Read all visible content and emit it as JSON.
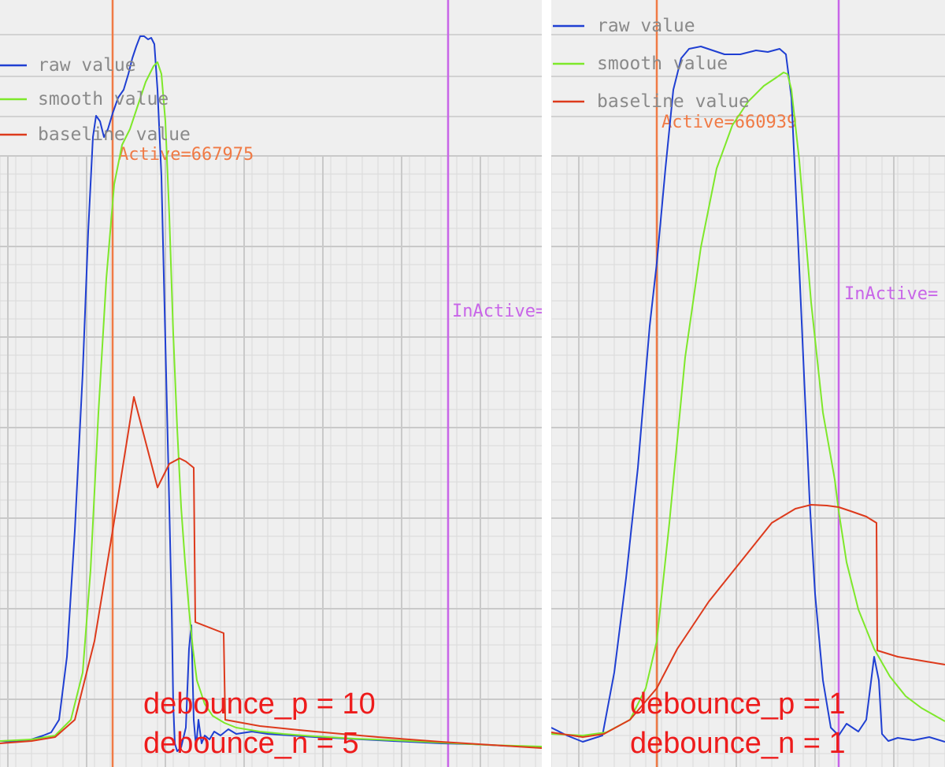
{
  "colors": {
    "raw": "#1f3fd2",
    "smooth": "#7ee82a",
    "baseline": "#dd3a1c",
    "active_marker": "#f07a45",
    "inactive_marker": "#c865e8",
    "annotation": "#ee1c1c",
    "grid": "#c9c9c9",
    "background": "#efefef"
  },
  "chart_data": [
    {
      "type": "line",
      "legend": [
        "raw value",
        "smooth value",
        "baseline value"
      ],
      "legend_position": "top-left",
      "grid": true,
      "xlim": [
        0,
        688
      ],
      "ylim": [
        0,
        974
      ],
      "markers": [
        {
          "id": "active",
          "label": "Active=667975",
          "x": 143
        },
        {
          "id": "inactive",
          "label": "InActive=",
          "x": 569
        }
      ],
      "annotations": [
        "debounce_p = 10",
        "debounce_n = 5"
      ],
      "series": [
        {
          "name": "raw value",
          "x": [
            0,
            20,
            40,
            55,
            65,
            75,
            85,
            95,
            105,
            112,
            118,
            122,
            127,
            132,
            137,
            143,
            150,
            157,
            163,
            168,
            173,
            178,
            183,
            188,
            192,
            196,
            200,
            205,
            210,
            215,
            218,
            220,
            222,
            225,
            230,
            236,
            240,
            243,
            246,
            249,
            252,
            256,
            260,
            266,
            272,
            280,
            290,
            300,
            320,
            340,
            370,
            400,
            440,
            480,
            520,
            560,
            600,
            640,
            688
          ],
          "y": [
            33,
            32,
            35,
            40,
            44,
            60,
            140,
            300,
            500,
            680,
            800,
            827,
            820,
            800,
            810,
            830,
            850,
            860,
            880,
            900,
            915,
            928,
            928,
            924,
            926,
            918,
            860,
            750,
            540,
            330,
            200,
            80,
            30,
            20,
            25,
            50,
            150,
            180,
            60,
            25,
            60,
            30,
            40,
            35,
            45,
            40,
            48,
            42,
            45,
            42,
            40,
            38,
            36,
            34,
            32,
            30,
            29,
            27,
            25
          ]
        },
        {
          "name": "smooth value",
          "x": [
            0,
            40,
            70,
            90,
            105,
            115,
            125,
            135,
            145,
            155,
            165,
            175,
            185,
            195,
            200,
            205,
            210,
            215,
            220,
            225,
            230,
            235,
            240,
            245,
            250,
            260,
            270,
            285,
            300,
            330,
            360,
            400,
            450,
            500,
            560,
            620,
            688
          ],
          "y": [
            33,
            35,
            40,
            60,
            120,
            250,
            450,
            620,
            740,
            790,
            810,
            840,
            870,
            890,
            895,
            880,
            820,
            700,
            550,
            430,
            330,
            260,
            200,
            150,
            110,
            80,
            65,
            56,
            50,
            45,
            42,
            39,
            36,
            34,
            31,
            28,
            26
          ]
        },
        {
          "name": "baseline value",
          "x": [
            0,
            40,
            70,
            95,
            120,
            143,
            170,
            200,
            215,
            228,
            236,
            246,
            248,
            284,
            286,
            330,
            400,
            480,
            560,
            640,
            688
          ],
          "y": [
            30,
            33,
            38,
            60,
            160,
            300,
            470,
            355,
            385,
            392,
            388,
            380,
            184,
            170,
            60,
            52,
            45,
            38,
            32,
            27,
            24
          ]
        }
      ]
    },
    {
      "type": "line",
      "legend": [
        "raw value",
        "smooth value",
        "baseline value"
      ],
      "legend_position": "top-left",
      "grid": true,
      "xlim": [
        0,
        500
      ],
      "ylim": [
        0,
        974
      ],
      "markers": [
        {
          "id": "active",
          "label": "Active=660939",
          "x": 134
        },
        {
          "id": "inactive",
          "label": "InActive=",
          "x": 365
        }
      ],
      "annotations": [
        "debounce_p = 1",
        "debounce_n = 1"
      ],
      "series": [
        {
          "name": "raw value",
          "x": [
            0,
            20,
            40,
            65,
            80,
            95,
            110,
            125,
            134,
            145,
            155,
            165,
            175,
            190,
            205,
            220,
            240,
            260,
            275,
            290,
            298,
            305,
            312,
            320,
            328,
            335,
            345,
            355,
            365,
            375,
            390,
            400,
            410,
            416,
            420,
            428,
            440,
            460,
            480,
            500
          ],
          "y": [
            50,
            40,
            32,
            40,
            120,
            240,
            380,
            560,
            640,
            760,
            860,
            900,
            912,
            915,
            910,
            905,
            905,
            910,
            908,
            912,
            905,
            850,
            700,
            520,
            340,
            220,
            110,
            50,
            40,
            55,
            45,
            60,
            140,
            110,
            42,
            33,
            37,
            34,
            38,
            32
          ]
        },
        {
          "name": "smooth value",
          "x": [
            0,
            40,
            70,
            100,
            120,
            134,
            150,
            170,
            190,
            210,
            230,
            250,
            270,
            285,
            295,
            300,
            305,
            315,
            330,
            345,
            360,
            365,
            375,
            390,
            410,
            430,
            450,
            470,
            500
          ],
          "y": [
            42,
            40,
            44,
            60,
            100,
            160,
            310,
            520,
            660,
            760,
            815,
            845,
            865,
            875,
            882,
            880,
            860,
            770,
            590,
            450,
            365,
            325,
            260,
            200,
            150,
            115,
            90,
            75,
            58
          ]
        },
        {
          "name": "baseline value",
          "x": [
            0,
            40,
            67,
            100,
            134,
            160,
            200,
            240,
            280,
            310,
            330,
            350,
            365,
            380,
            400,
            413,
            414,
            440,
            470,
            500
          ],
          "y": [
            44,
            38,
            42,
            60,
            100,
            150,
            210,
            260,
            310,
            328,
            333,
            332,
            330,
            325,
            318,
            310,
            148,
            140,
            135,
            130
          ]
        }
      ]
    }
  ]
}
